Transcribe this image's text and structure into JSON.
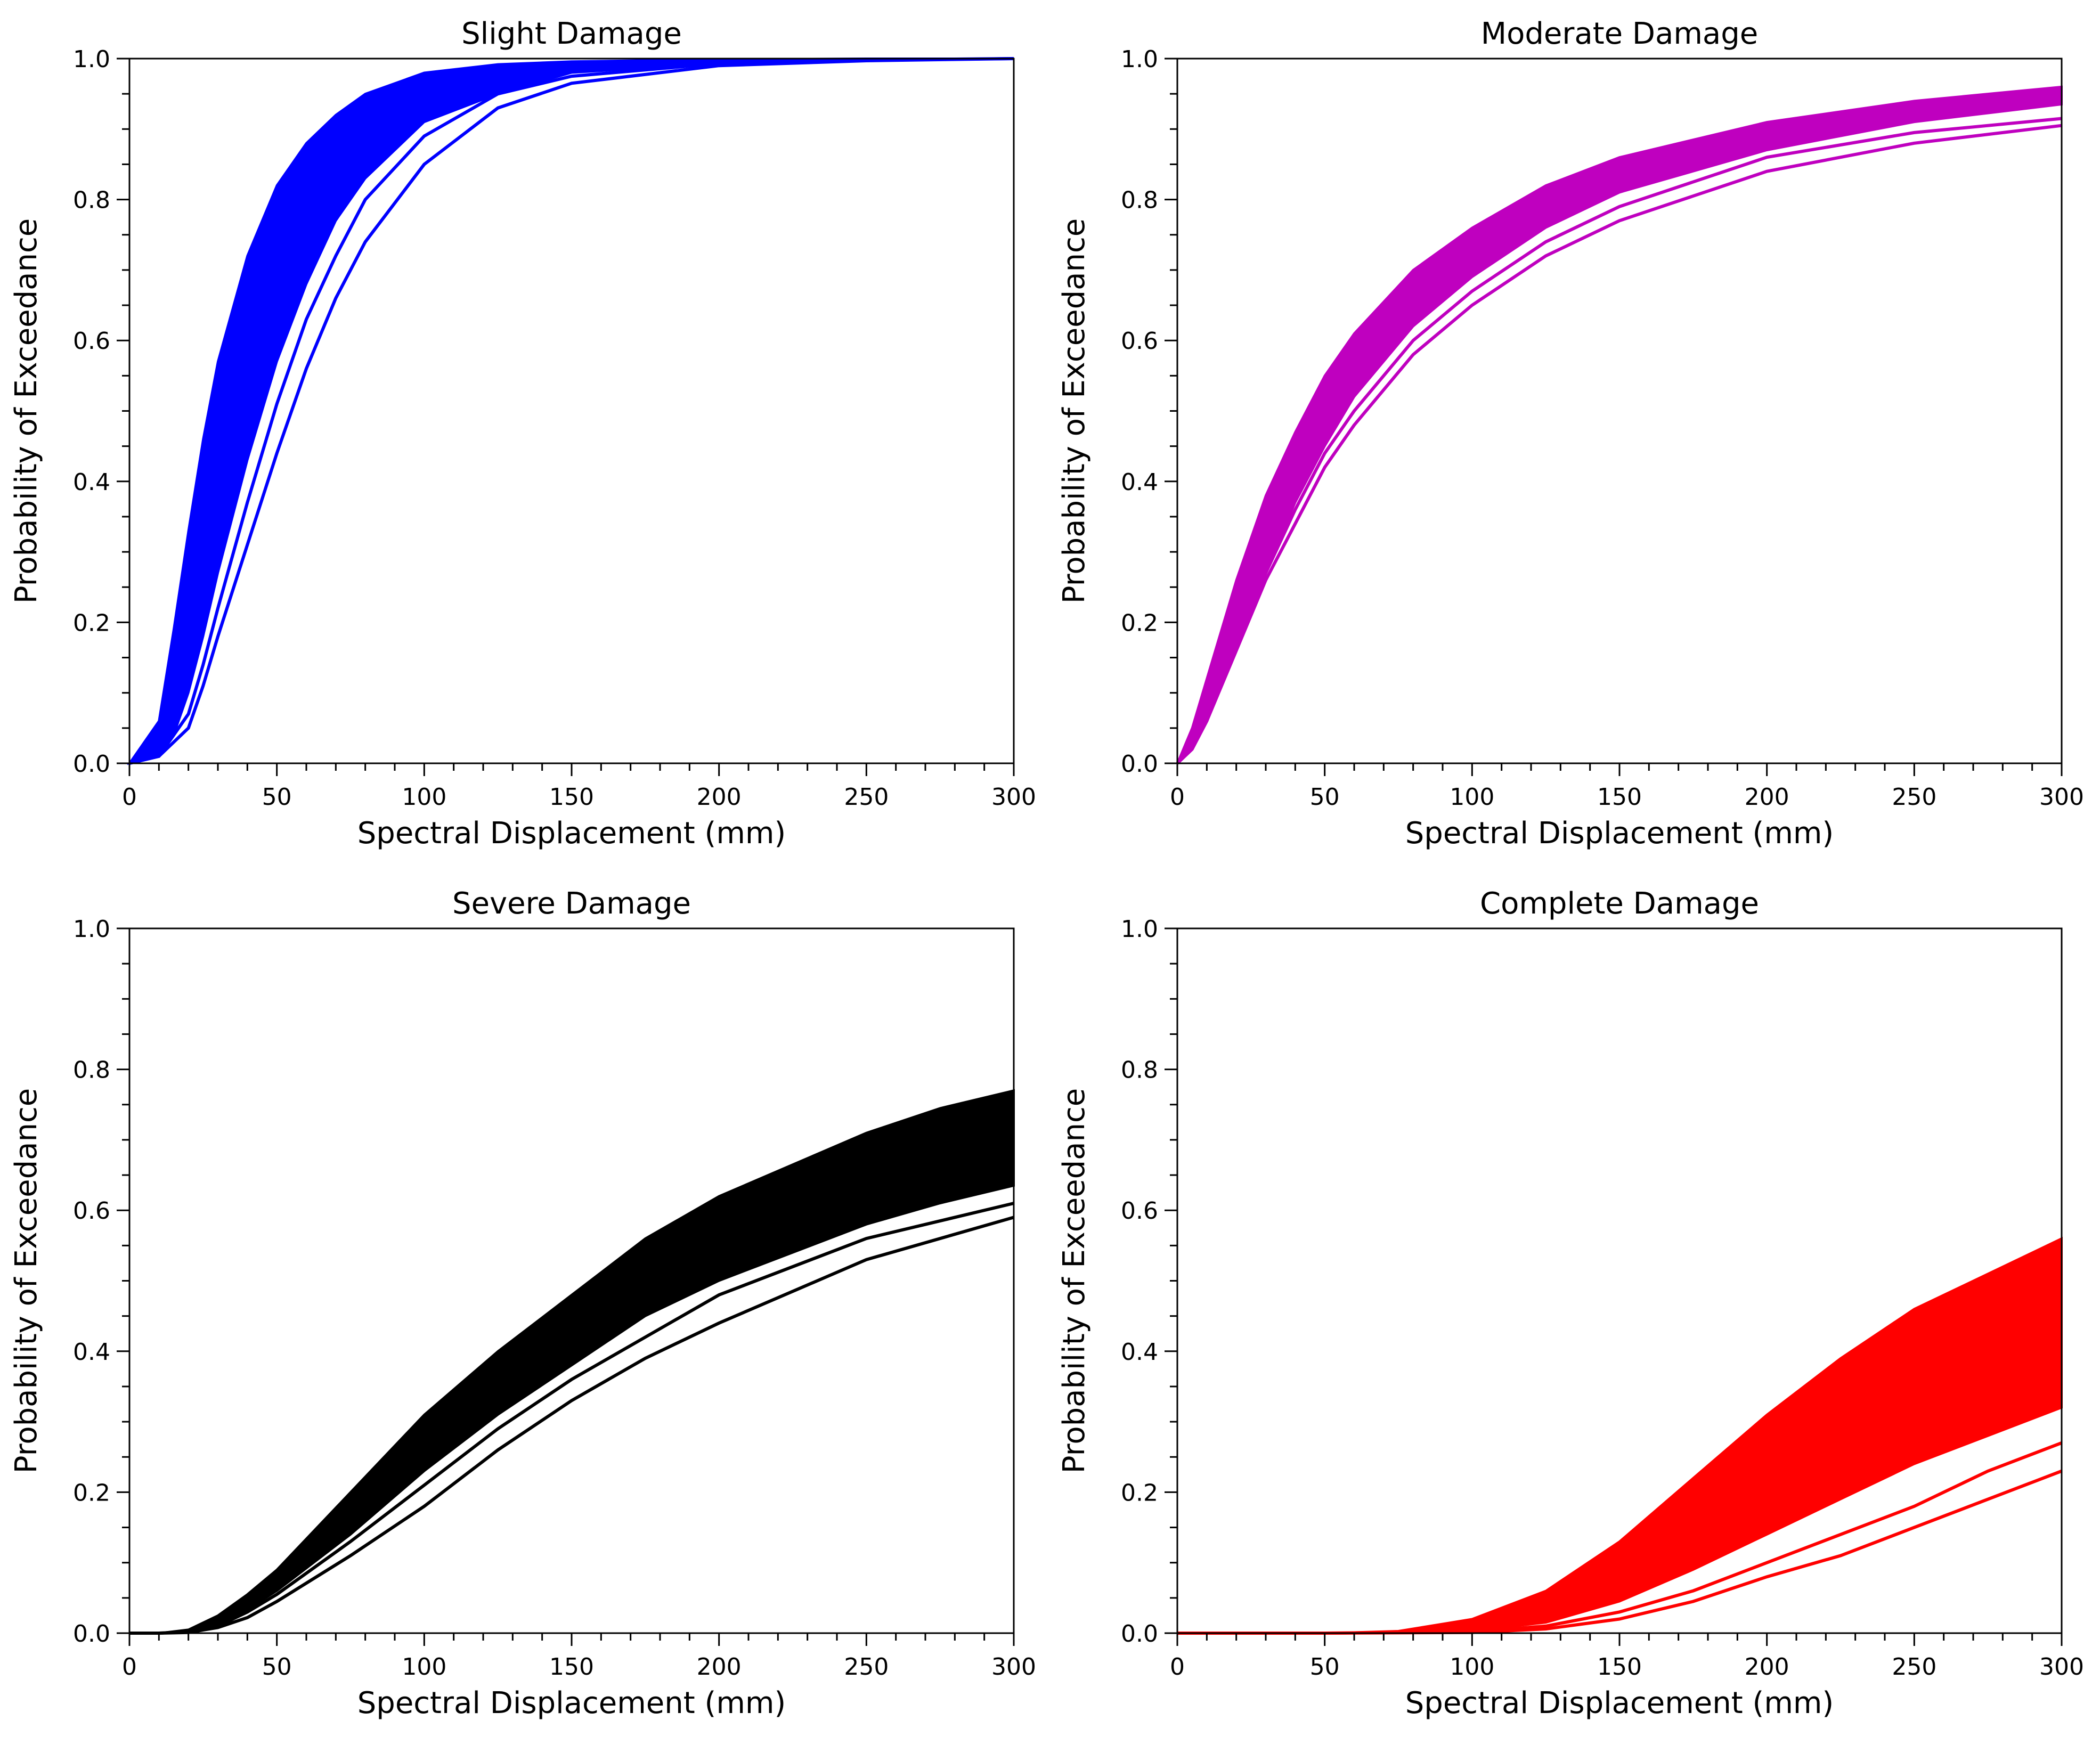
{
  "figure": {
    "charts": [
      {
        "title": "Slight Damage"
      },
      {
        "title": "Moderate Damage"
      },
      {
        "title": "Severe Damage"
      },
      {
        "title": "Complete Damage"
      }
    ]
  },
  "chart_data": [
    {
      "type": "line",
      "title": "Slight Damage",
      "xlabel": "Spectral Displacement (mm)",
      "ylabel": "Probability of Exceedance",
      "xlim": [
        0,
        300
      ],
      "ylim": [
        0,
        1.0
      ],
      "xticks": [
        "0",
        "50",
        "100",
        "150",
        "200",
        "250",
        "300"
      ],
      "yticks": [
        "0.0",
        "0.2",
        "0.4",
        "0.6",
        "0.8",
        "1.0"
      ],
      "grid": false,
      "color": "#0000ff",
      "band": {
        "x": [
          0,
          10,
          15,
          20,
          25,
          30,
          40,
          50,
          60,
          70,
          80,
          100,
          125,
          150,
          200,
          250,
          300
        ],
        "upper": [
          0.0,
          0.06,
          0.19,
          0.33,
          0.46,
          0.57,
          0.72,
          0.82,
          0.88,
          0.92,
          0.95,
          0.98,
          0.992,
          0.996,
          0.999,
          1.0,
          1.0
        ],
        "lower": [
          0.0,
          0.01,
          0.04,
          0.1,
          0.18,
          0.27,
          0.43,
          0.57,
          0.68,
          0.77,
          0.83,
          0.91,
          0.95,
          0.98,
          0.993,
          0.998,
          1.0
        ]
      },
      "series": [
        {
          "x": [
            0,
            10,
            20,
            25,
            30,
            40,
            50,
            60,
            70,
            80,
            100,
            125,
            150,
            200,
            250,
            300
          ],
          "y": [
            0.0,
            0.01,
            0.07,
            0.14,
            0.22,
            0.37,
            0.51,
            0.63,
            0.72,
            0.8,
            0.89,
            0.95,
            0.975,
            0.993,
            0.998,
            1.0
          ]
        },
        {
          "x": [
            0,
            10,
            20,
            25,
            30,
            40,
            50,
            60,
            70,
            80,
            100,
            125,
            150,
            200,
            250,
            300
          ],
          "y": [
            0.0,
            0.01,
            0.05,
            0.11,
            0.18,
            0.31,
            0.44,
            0.56,
            0.66,
            0.74,
            0.85,
            0.93,
            0.965,
            0.99,
            0.997,
            1.0
          ]
        }
      ]
    },
    {
      "type": "line",
      "title": "Moderate Damage",
      "xlabel": "Spectral Displacement (mm)",
      "ylabel": "Probability of Exceedance",
      "xlim": [
        0,
        300
      ],
      "ylim": [
        0,
        1.0
      ],
      "xticks": [
        "0",
        "50",
        "100",
        "150",
        "200",
        "250",
        "300"
      ],
      "yticks": [
        "0.0",
        "0.2",
        "0.4",
        "0.6",
        "0.8",
        "1.0"
      ],
      "grid": false,
      "color": "#bf00bf",
      "band": {
        "x": [
          0,
          5,
          10,
          20,
          30,
          40,
          50,
          60,
          80,
          100,
          125,
          150,
          200,
          250,
          300
        ],
        "upper": [
          0.0,
          0.05,
          0.12,
          0.26,
          0.38,
          0.47,
          0.55,
          0.61,
          0.7,
          0.76,
          0.82,
          0.86,
          0.91,
          0.94,
          0.96
        ],
        "lower": [
          0.0,
          0.02,
          0.06,
          0.17,
          0.27,
          0.37,
          0.45,
          0.52,
          0.62,
          0.69,
          0.76,
          0.81,
          0.87,
          0.91,
          0.935
        ]
      },
      "series": [
        {
          "x": [
            0,
            5,
            10,
            20,
            30,
            40,
            50,
            60,
            80,
            100,
            125,
            150,
            200,
            250,
            300
          ],
          "y": [
            0.0,
            0.02,
            0.06,
            0.17,
            0.27,
            0.36,
            0.44,
            0.5,
            0.6,
            0.67,
            0.74,
            0.79,
            0.86,
            0.895,
            0.915
          ]
        },
        {
          "x": [
            0,
            5,
            10,
            20,
            30,
            40,
            50,
            60,
            80,
            100,
            125,
            150,
            200,
            250,
            300
          ],
          "y": [
            0.0,
            0.02,
            0.06,
            0.16,
            0.26,
            0.34,
            0.42,
            0.48,
            0.58,
            0.65,
            0.72,
            0.77,
            0.84,
            0.88,
            0.905
          ]
        }
      ]
    },
    {
      "type": "line",
      "title": "Severe Damage",
      "xlabel": "Spectral Displacement (mm)",
      "ylabel": "Probability of Exceedance",
      "xlim": [
        0,
        300
      ],
      "ylim": [
        0,
        1.0
      ],
      "xticks": [
        "0",
        "50",
        "100",
        "150",
        "200",
        "250",
        "300"
      ],
      "yticks": [
        "0.0",
        "0.2",
        "0.4",
        "0.6",
        "0.8",
        "1.0"
      ],
      "grid": false,
      "color": "#000000",
      "band": {
        "x": [
          0,
          10,
          20,
          30,
          40,
          50,
          75,
          100,
          125,
          150,
          175,
          200,
          250,
          275,
          300
        ],
        "upper": [
          0.0,
          0.0,
          0.005,
          0.025,
          0.055,
          0.09,
          0.2,
          0.31,
          0.4,
          0.48,
          0.56,
          0.62,
          0.71,
          0.745,
          0.77
        ],
        "lower": [
          0.0,
          0.0,
          0.002,
          0.012,
          0.033,
          0.06,
          0.14,
          0.23,
          0.31,
          0.38,
          0.45,
          0.5,
          0.58,
          0.61,
          0.635
        ]
      },
      "series": [
        {
          "x": [
            0,
            10,
            20,
            30,
            40,
            50,
            75,
            100,
            125,
            150,
            175,
            200,
            250,
            300
          ],
          "y": [
            0.0,
            0.0,
            0.002,
            0.01,
            0.03,
            0.055,
            0.13,
            0.21,
            0.29,
            0.36,
            0.42,
            0.48,
            0.56,
            0.61
          ]
        },
        {
          "x": [
            0,
            10,
            20,
            30,
            40,
            50,
            75,
            100,
            125,
            150,
            175,
            200,
            250,
            300
          ],
          "y": [
            0.0,
            0.0,
            0.001,
            0.008,
            0.022,
            0.045,
            0.11,
            0.18,
            0.26,
            0.33,
            0.39,
            0.44,
            0.53,
            0.59
          ]
        }
      ]
    },
    {
      "type": "line",
      "title": "Complete Damage",
      "xlabel": "Spectral Displacement (mm)",
      "ylabel": "Probability of Exceedance",
      "xlim": [
        0,
        300
      ],
      "ylim": [
        0,
        1.0
      ],
      "xticks": [
        "0",
        "50",
        "100",
        "150",
        "200",
        "250",
        "300"
      ],
      "yticks": [
        "0.0",
        "0.2",
        "0.4",
        "0.6",
        "0.8",
        "1.0"
      ],
      "grid": false,
      "color": "#ff0000",
      "band": {
        "x": [
          0,
          50,
          75,
          100,
          125,
          150,
          175,
          200,
          225,
          250,
          275,
          300
        ],
        "upper": [
          0.0,
          0.0,
          0.003,
          0.02,
          0.06,
          0.13,
          0.22,
          0.31,
          0.39,
          0.46,
          0.51,
          0.56
        ],
        "lower": [
          0.0,
          0.0,
          0.0,
          0.003,
          0.015,
          0.045,
          0.09,
          0.14,
          0.19,
          0.24,
          0.28,
          0.32
        ]
      },
      "series": [
        {
          "x": [
            0,
            50,
            100,
            125,
            150,
            175,
            200,
            225,
            250,
            275,
            300
          ],
          "y": [
            0.0,
            0.0,
            0.002,
            0.01,
            0.03,
            0.06,
            0.1,
            0.14,
            0.18,
            0.23,
            0.27
          ]
        },
        {
          "x": [
            0,
            50,
            100,
            125,
            150,
            175,
            200,
            225,
            250,
            275,
            300
          ],
          "y": [
            0.0,
            0.0,
            0.001,
            0.006,
            0.02,
            0.045,
            0.08,
            0.11,
            0.15,
            0.19,
            0.23
          ]
        }
      ]
    }
  ]
}
